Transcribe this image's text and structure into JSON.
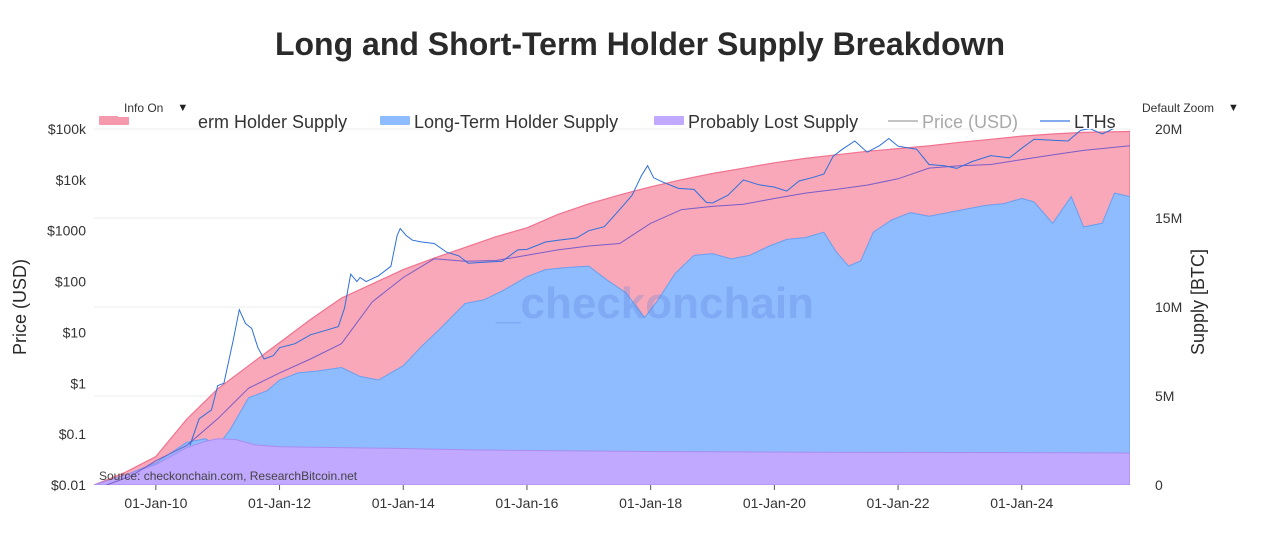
{
  "chart_data": {
    "type": "area",
    "title": "Long and Short-Term Holder Supply Breakdown",
    "xlabel": "",
    "ylabel_left": "Price (USD)",
    "ylabel_right": "Supply [BTC]",
    "y_left_scale": "log",
    "y_left_range": [
      0.01,
      100000
    ],
    "y_right_range": [
      0,
      20000000
    ],
    "x_range": [
      2009.0,
      2025.75
    ],
    "x_ticks": [
      2010,
      2012,
      2014,
      2016,
      2018,
      2020,
      2022,
      2024
    ],
    "x_tick_labels": [
      "01-Jan-10",
      "01-Jan-12",
      "01-Jan-14",
      "01-Jan-16",
      "01-Jan-18",
      "01-Jan-20",
      "01-Jan-22",
      "01-Jan-24"
    ],
    "y_left_ticks": [
      0.01,
      0.1,
      1,
      10,
      100,
      1000,
      10000,
      100000
    ],
    "y_left_tick_labels": [
      "$0.01",
      "$0.1",
      "$1",
      "$10",
      "$100",
      "$1000",
      "$10k",
      "$100k"
    ],
    "y_right_ticks": [
      0,
      5000000,
      10000000,
      15000000,
      20000000
    ],
    "y_right_tick_labels": [
      "0",
      "5M",
      "10M",
      "15M",
      "20M"
    ],
    "legend": {
      "position": "top",
      "entries": [
        "Short-Term Holder Supply",
        "Long-Term Holder Supply",
        "Probably Lost Supply",
        "Price (USD)",
        "LTHs"
      ],
      "visible_labels": [
        "erm Holder Supply",
        "Long-Term Holder Supply",
        "Probably Lost Supply",
        "Price (USD)",
        "LTHs"
      ]
    },
    "watermark": "_checkonchain",
    "source": "Source: checkonchain.com, ResearchBitcoin.net",
    "series": [
      {
        "name": "Short-Term Holder Supply",
        "kind": "area_total_supply_btc",
        "color": "#f799ad",
        "x": [
          2009.0,
          2009.5,
          2010.0,
          2010.5,
          2011.0,
          2011.5,
          2012.0,
          2012.5,
          2013.0,
          2013.5,
          2014.0,
          2014.5,
          2015.0,
          2015.5,
          2016.0,
          2016.5,
          2017.0,
          2017.5,
          2018.0,
          2018.5,
          2019.0,
          2019.5,
          2020.0,
          2020.5,
          2021.0,
          2021.5,
          2022.0,
          2022.5,
          2023.0,
          2023.5,
          2024.0,
          2024.5,
          2025.0,
          2025.75
        ],
        "values": [
          0,
          700000,
          1600000,
          3700000,
          5400000,
          6700000,
          8000000,
          9300000,
          10500000,
          11300000,
          12100000,
          12750000,
          13350000,
          13950000,
          14450000,
          15200000,
          15800000,
          16300000,
          16750000,
          17150000,
          17500000,
          17800000,
          18100000,
          18350000,
          18550000,
          18750000,
          18900000,
          19050000,
          19250000,
          19420000,
          19600000,
          19720000,
          19810000,
          19860000
        ]
      },
      {
        "name": "Long-Term Holder Supply",
        "kind": "area_lth_supply_btc",
        "color": "#8fbcff",
        "x": [
          2009.0,
          2009.5,
          2010.0,
          2010.5,
          2010.8,
          2011.0,
          2011.2,
          2011.5,
          2011.8,
          2012.0,
          2012.3,
          2012.6,
          2013.0,
          2013.3,
          2013.6,
          2014.0,
          2014.3,
          2014.6,
          2015.0,
          2015.3,
          2015.6,
          2016.0,
          2016.3,
          2016.6,
          2017.0,
          2017.3,
          2017.6,
          2017.9,
          2018.1,
          2018.4,
          2018.7,
          2019.0,
          2019.3,
          2019.6,
          2019.9,
          2020.2,
          2020.5,
          2020.8,
          2021.0,
          2021.2,
          2021.4,
          2021.6,
          2021.9,
          2022.2,
          2022.5,
          2022.8,
          2023.1,
          2023.4,
          2023.7,
          2024.0,
          2024.2,
          2024.5,
          2024.8,
          2025.0,
          2025.3,
          2025.5,
          2025.75
        ],
        "values": [
          0,
          550000,
          1250000,
          2400000,
          2600000,
          2200000,
          3100000,
          4900000,
          5300000,
          5900000,
          6300000,
          6400000,
          6600000,
          6100000,
          5900000,
          6700000,
          7800000,
          8800000,
          10200000,
          10400000,
          10900000,
          11700000,
          12100000,
          12200000,
          12300000,
          11500000,
          10800000,
          9400000,
          10300000,
          11900000,
          12900000,
          13000000,
          12700000,
          12900000,
          13400000,
          13800000,
          13900000,
          14200000,
          13100000,
          12300000,
          12600000,
          14200000,
          14900000,
          15300000,
          15100000,
          15300000,
          15500000,
          15700000,
          15800000,
          16100000,
          15900000,
          14700000,
          16200000,
          14500000,
          14700000,
          16400000,
          16200000
        ]
      },
      {
        "name": "Probably Lost Supply",
        "kind": "area_lost_supply_btc",
        "color": "#c0a9ff",
        "x": [
          2009.0,
          2009.5,
          2010.0,
          2010.5,
          2010.8,
          2011.0,
          2011.3,
          2011.6,
          2012.0,
          2013.0,
          2014.0,
          2015.0,
          2016.0,
          2018.0,
          2020.0,
          2022.0,
          2024.0,
          2025.75
        ],
        "values": [
          0,
          550000,
          1150000,
          2100000,
          2450000,
          2600000,
          2550000,
          2250000,
          2150000,
          2100000,
          2050000,
          1980000,
          1940000,
          1880000,
          1850000,
          1830000,
          1820000,
          1800000
        ]
      },
      {
        "name": "Price (USD)",
        "kind": "line_price_usd",
        "color": "#2d6fdc",
        "x": [
          2010.55,
          2010.7,
          2010.9,
          2011.0,
          2011.1,
          2011.25,
          2011.35,
          2011.45,
          2011.55,
          2011.65,
          2011.75,
          2011.9,
          2012.0,
          2012.25,
          2012.5,
          2012.75,
          2012.95,
          2013.05,
          2013.15,
          2013.25,
          2013.3,
          2013.4,
          2013.6,
          2013.8,
          2013.9,
          2013.95,
          2014.05,
          2014.15,
          2014.3,
          2014.5,
          2014.7,
          2014.9,
          2015.05,
          2015.3,
          2015.6,
          2015.85,
          2016.0,
          2016.3,
          2016.5,
          2016.8,
          2017.0,
          2017.25,
          2017.5,
          2017.7,
          2017.85,
          2017.95,
          2018.05,
          2018.2,
          2018.45,
          2018.7,
          2018.9,
          2019.0,
          2019.25,
          2019.5,
          2019.75,
          2020.0,
          2020.2,
          2020.4,
          2020.6,
          2020.8,
          2020.95,
          2021.1,
          2021.3,
          2021.5,
          2021.7,
          2021.85,
          2022.0,
          2022.3,
          2022.5,
          2022.75,
          2022.95,
          2023.2,
          2023.5,
          2023.8,
          2024.0,
          2024.2,
          2024.5,
          2024.75,
          2024.95,
          2025.1,
          2025.3,
          2025.5,
          2025.75
        ],
        "values": [
          0.06,
          0.2,
          0.3,
          0.9,
          1.0,
          7,
          28,
          15,
          12,
          5,
          3,
          3.5,
          5,
          6,
          9,
          11,
          13,
          30,
          140,
          100,
          120,
          100,
          130,
          200,
          800,
          1100,
          800,
          650,
          600,
          560,
          380,
          320,
          230,
          240,
          250,
          420,
          430,
          600,
          650,
          720,
          1000,
          1200,
          2600,
          5000,
          12000,
          19000,
          11000,
          9000,
          6800,
          6500,
          3600,
          3500,
          5000,
          10000,
          8000,
          7200,
          6000,
          9500,
          11000,
          13000,
          29000,
          40000,
          58000,
          35000,
          47000,
          65000,
          46000,
          40000,
          20000,
          19000,
          16800,
          23000,
          30000,
          27000,
          42000,
          63000,
          60000,
          58000,
          94000,
          102000,
          80000,
          104000,
          110000
        ]
      },
      {
        "name": "LTHs",
        "kind": "line_lth_realized_price_usd",
        "color": "#7a5cc8",
        "x": [
          2009.2,
          2009.6,
          2010.0,
          2010.5,
          2011.0,
          2011.5,
          2012.0,
          2012.5,
          2013.0,
          2013.5,
          2014.0,
          2014.5,
          2015.0,
          2015.5,
          2016.0,
          2016.5,
          2017.0,
          2017.5,
          2018.0,
          2018.5,
          2019.0,
          2019.5,
          2020.0,
          2020.5,
          2021.0,
          2021.5,
          2022.0,
          2022.5,
          2023.0,
          2023.5,
          2024.0,
          2024.5,
          2025.0,
          2025.75
        ],
        "values": [
          0.01,
          0.015,
          0.03,
          0.06,
          0.2,
          0.8,
          1.6,
          3,
          6,
          40,
          120,
          280,
          250,
          260,
          330,
          420,
          500,
          560,
          1400,
          2600,
          3000,
          3300,
          4300,
          5500,
          6500,
          7900,
          10500,
          17000,
          19000,
          20000,
          25000,
          31000,
          38000,
          47000
        ]
      }
    ]
  }
}
